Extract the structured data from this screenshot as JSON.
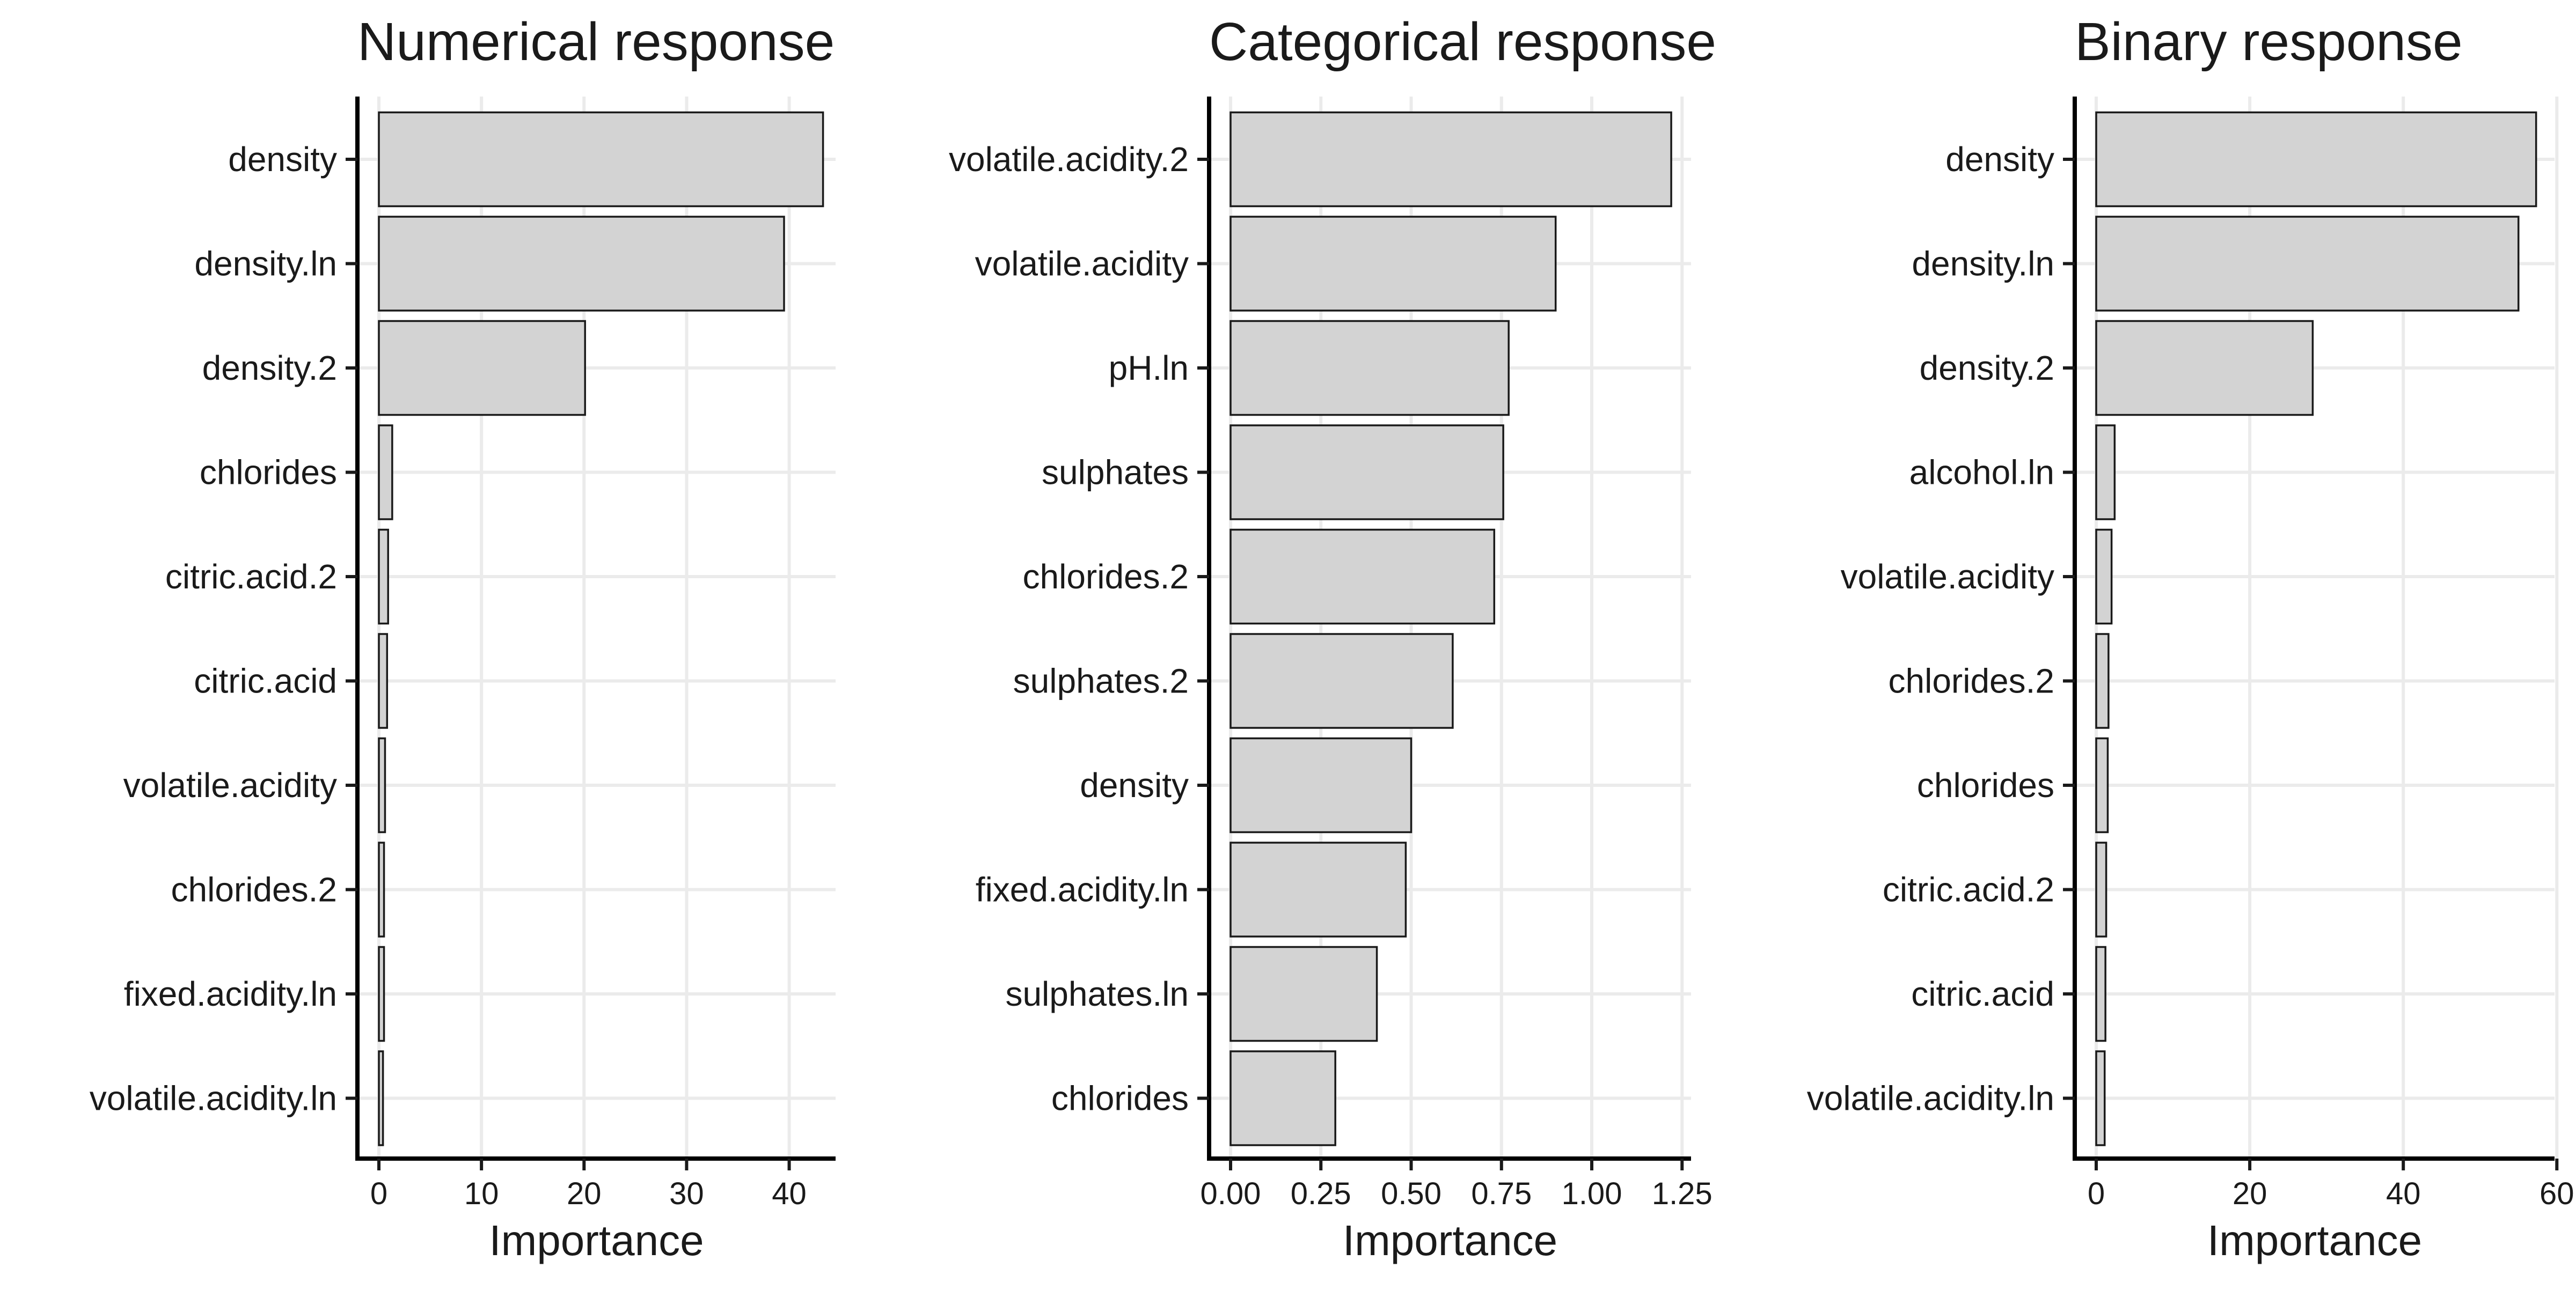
{
  "chart_data": [
    {
      "type": "bar",
      "orientation": "horizontal",
      "title": "Numerical response",
      "xlabel": "Importance",
      "ylabel": "",
      "xlim": [
        0,
        44
      ],
      "xticks": [
        0,
        10,
        20,
        30,
        40
      ],
      "xtick_labels": [
        "0",
        "10",
        "20",
        "30",
        "40"
      ],
      "grid": true,
      "categories": [
        "density",
        "density.ln",
        "density.2",
        "chlorides",
        "citric.acid.2",
        "citric.acid",
        "volatile.acidity",
        "chlorides.2",
        "fixed.acidity.ln",
        "volatile.acidity.ln"
      ],
      "values": [
        43.3,
        39.5,
        20.1,
        1.3,
        0.9,
        0.8,
        0.6,
        0.5,
        0.5,
        0.4
      ],
      "bar_color": "#d3d3d3"
    },
    {
      "type": "bar",
      "orientation": "horizontal",
      "title": "Categorical response",
      "xlabel": "Importance",
      "ylabel": "",
      "xlim": [
        0,
        1.26
      ],
      "xticks": [
        0,
        0.25,
        0.5,
        0.75,
        1.0,
        1.25
      ],
      "xtick_labels": [
        "0.00",
        "0.25",
        "0.50",
        "0.75",
        "1.00",
        "1.25"
      ],
      "grid": true,
      "categories": [
        "volatile.acidity.2",
        "volatile.acidity",
        "pH.ln",
        "sulphates",
        "chlorides.2",
        "sulphates.2",
        "density",
        "fixed.acidity.ln",
        "sulphates.ln",
        "chlorides"
      ],
      "values": [
        1.22,
        0.9,
        0.77,
        0.755,
        0.73,
        0.615,
        0.5,
        0.485,
        0.405,
        0.29
      ],
      "bar_color": "#d3d3d3"
    },
    {
      "type": "bar",
      "orientation": "horizontal",
      "title": "Binary response",
      "xlabel": "Importance",
      "ylabel": "",
      "xlim": [
        0,
        59
      ],
      "xticks": [
        0,
        20,
        40,
        60
      ],
      "xtick_labels": [
        "0",
        "20",
        "40",
        "60"
      ],
      "grid": true,
      "categories": [
        "density",
        "density.ln",
        "density.2",
        "alcohol.ln",
        "volatile.acidity",
        "chlorides.2",
        "chlorides",
        "citric.acid.2",
        "citric.acid",
        "volatile.acidity.ln"
      ],
      "values": [
        57.3,
        55.0,
        28.2,
        2.4,
        2.0,
        1.6,
        1.5,
        1.3,
        1.2,
        1.1
      ],
      "bar_color": "#d3d3d3"
    }
  ]
}
